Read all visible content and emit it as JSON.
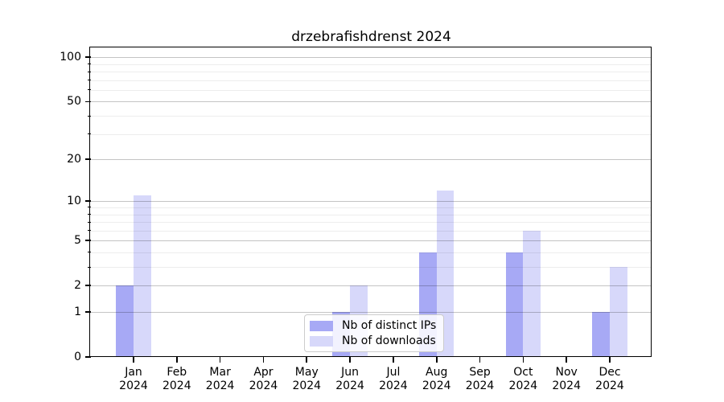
{
  "chart_data": {
    "type": "bar",
    "title": "drzebrafishdrenst 2024",
    "categories": [
      {
        "month": "Jan",
        "year": "2024"
      },
      {
        "month": "Feb",
        "year": "2024"
      },
      {
        "month": "Mar",
        "year": "2024"
      },
      {
        "month": "Apr",
        "year": "2024"
      },
      {
        "month": "May",
        "year": "2024"
      },
      {
        "month": "Jun",
        "year": "2024"
      },
      {
        "month": "Jul",
        "year": "2024"
      },
      {
        "month": "Aug",
        "year": "2024"
      },
      {
        "month": "Sep",
        "year": "2024"
      },
      {
        "month": "Oct",
        "year": "2024"
      },
      {
        "month": "Nov",
        "year": "2024"
      },
      {
        "month": "Dec",
        "year": "2024"
      }
    ],
    "series": [
      {
        "name": "Nb of distinct IPs",
        "color": "#a7a9f5",
        "values": [
          2,
          0,
          0,
          0,
          0,
          1,
          0,
          4,
          0,
          4,
          0,
          1
        ]
      },
      {
        "name": "Nb of downloads",
        "color": "#d7d8fa",
        "values": [
          11,
          0,
          0,
          0,
          0,
          2,
          0,
          12,
          0,
          6,
          0,
          3
        ]
      }
    ],
    "yscale": "log(x+1)",
    "ylim": [
      0,
      115
    ],
    "y_major_ticks": [
      100,
      50,
      20,
      10,
      5,
      2,
      1,
      0
    ],
    "y_minor_ticks": [
      3,
      4,
      6,
      7,
      8,
      9,
      30,
      40,
      60,
      70,
      80,
      90
    ],
    "grid": "horizontal",
    "legend_position": "bottom-center"
  },
  "colors": {
    "major_grid": "rgba(0,0,0,0.23)",
    "minor_grid": "rgba(0,0,0,0.07)",
    "axis": "#000000"
  }
}
